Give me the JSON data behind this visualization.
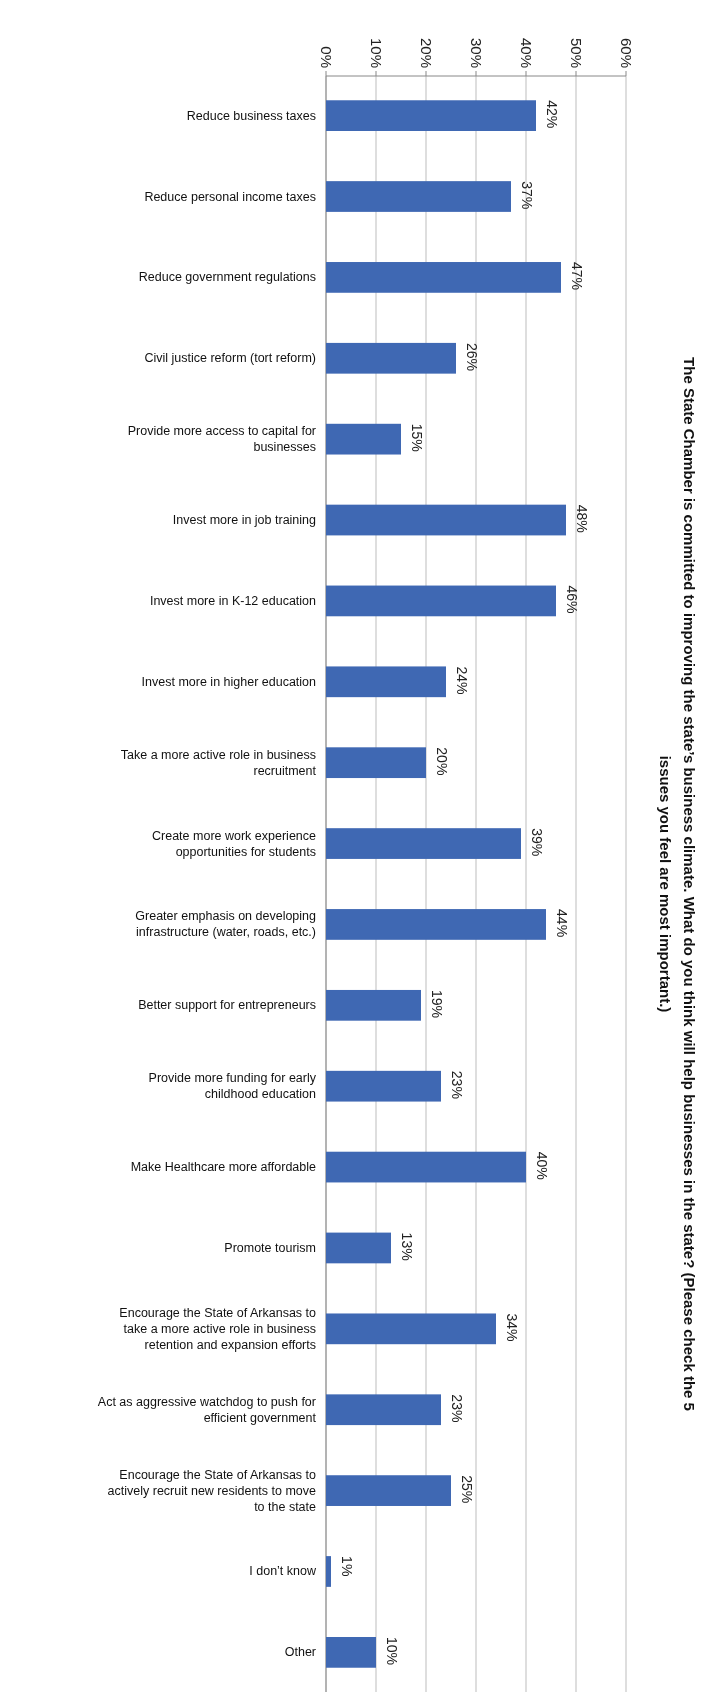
{
  "chart_data": {
    "type": "bar",
    "orientation": "horizontal",
    "title": "The State Chamber is committed to improving the state’s business climate. What do you think will help businesses in the state? (Please check the 5 issues you feel are most important.)",
    "categories": [
      "Reduce business taxes",
      "Reduce personal income taxes",
      "Reduce government regulations",
      "Civil justice reform (tort reform)",
      "Provide more access to capital for businesses",
      "Invest more in job training",
      "Invest more in K-12 education",
      "Invest more in higher education",
      "Take a more active role in business recruitment",
      "Create more work experience opportunities for students",
      "Greater emphasis on developing infrastructure (water, roads, etc.)",
      "Better support for entrepreneurs",
      "Provide more funding for early childhood education",
      "Make Healthcare more affordable",
      "Promote tourism",
      "Encourage the State of Arkansas to take a more active role in business retention and expansion efforts",
      "Act as aggressive watchdog to push for efficient government",
      "Encourage the State of Arkansas to actively recruit new residents to move to the state",
      "I don’t know",
      "Other"
    ],
    "values": [
      42,
      37,
      47,
      26,
      15,
      48,
      46,
      24,
      20,
      39,
      44,
      19,
      23,
      40,
      13,
      34,
      23,
      25,
      1,
      10
    ],
    "color": "#3f68b3",
    "xlim": [
      0,
      60
    ],
    "xticks": [
      {
        "value": 0,
        "label": "0%"
      },
      {
        "value": 10,
        "label": "10%"
      },
      {
        "value": 20,
        "label": "20%"
      },
      {
        "value": 30,
        "label": "30%"
      },
      {
        "value": 40,
        "label": "40%"
      },
      {
        "value": 50,
        "label": "50%"
      },
      {
        "value": 60,
        "label": "60%"
      }
    ],
    "value_labels": [
      "42%",
      "37%",
      "47%",
      "26%",
      "15%",
      "48%",
      "46%",
      "24%",
      "20%",
      "39%",
      "44%",
      "19%",
      "23%",
      "40%",
      "13%",
      "34%",
      "23%",
      "25%",
      "1%",
      "10%"
    ],
    "grid": "x"
  }
}
